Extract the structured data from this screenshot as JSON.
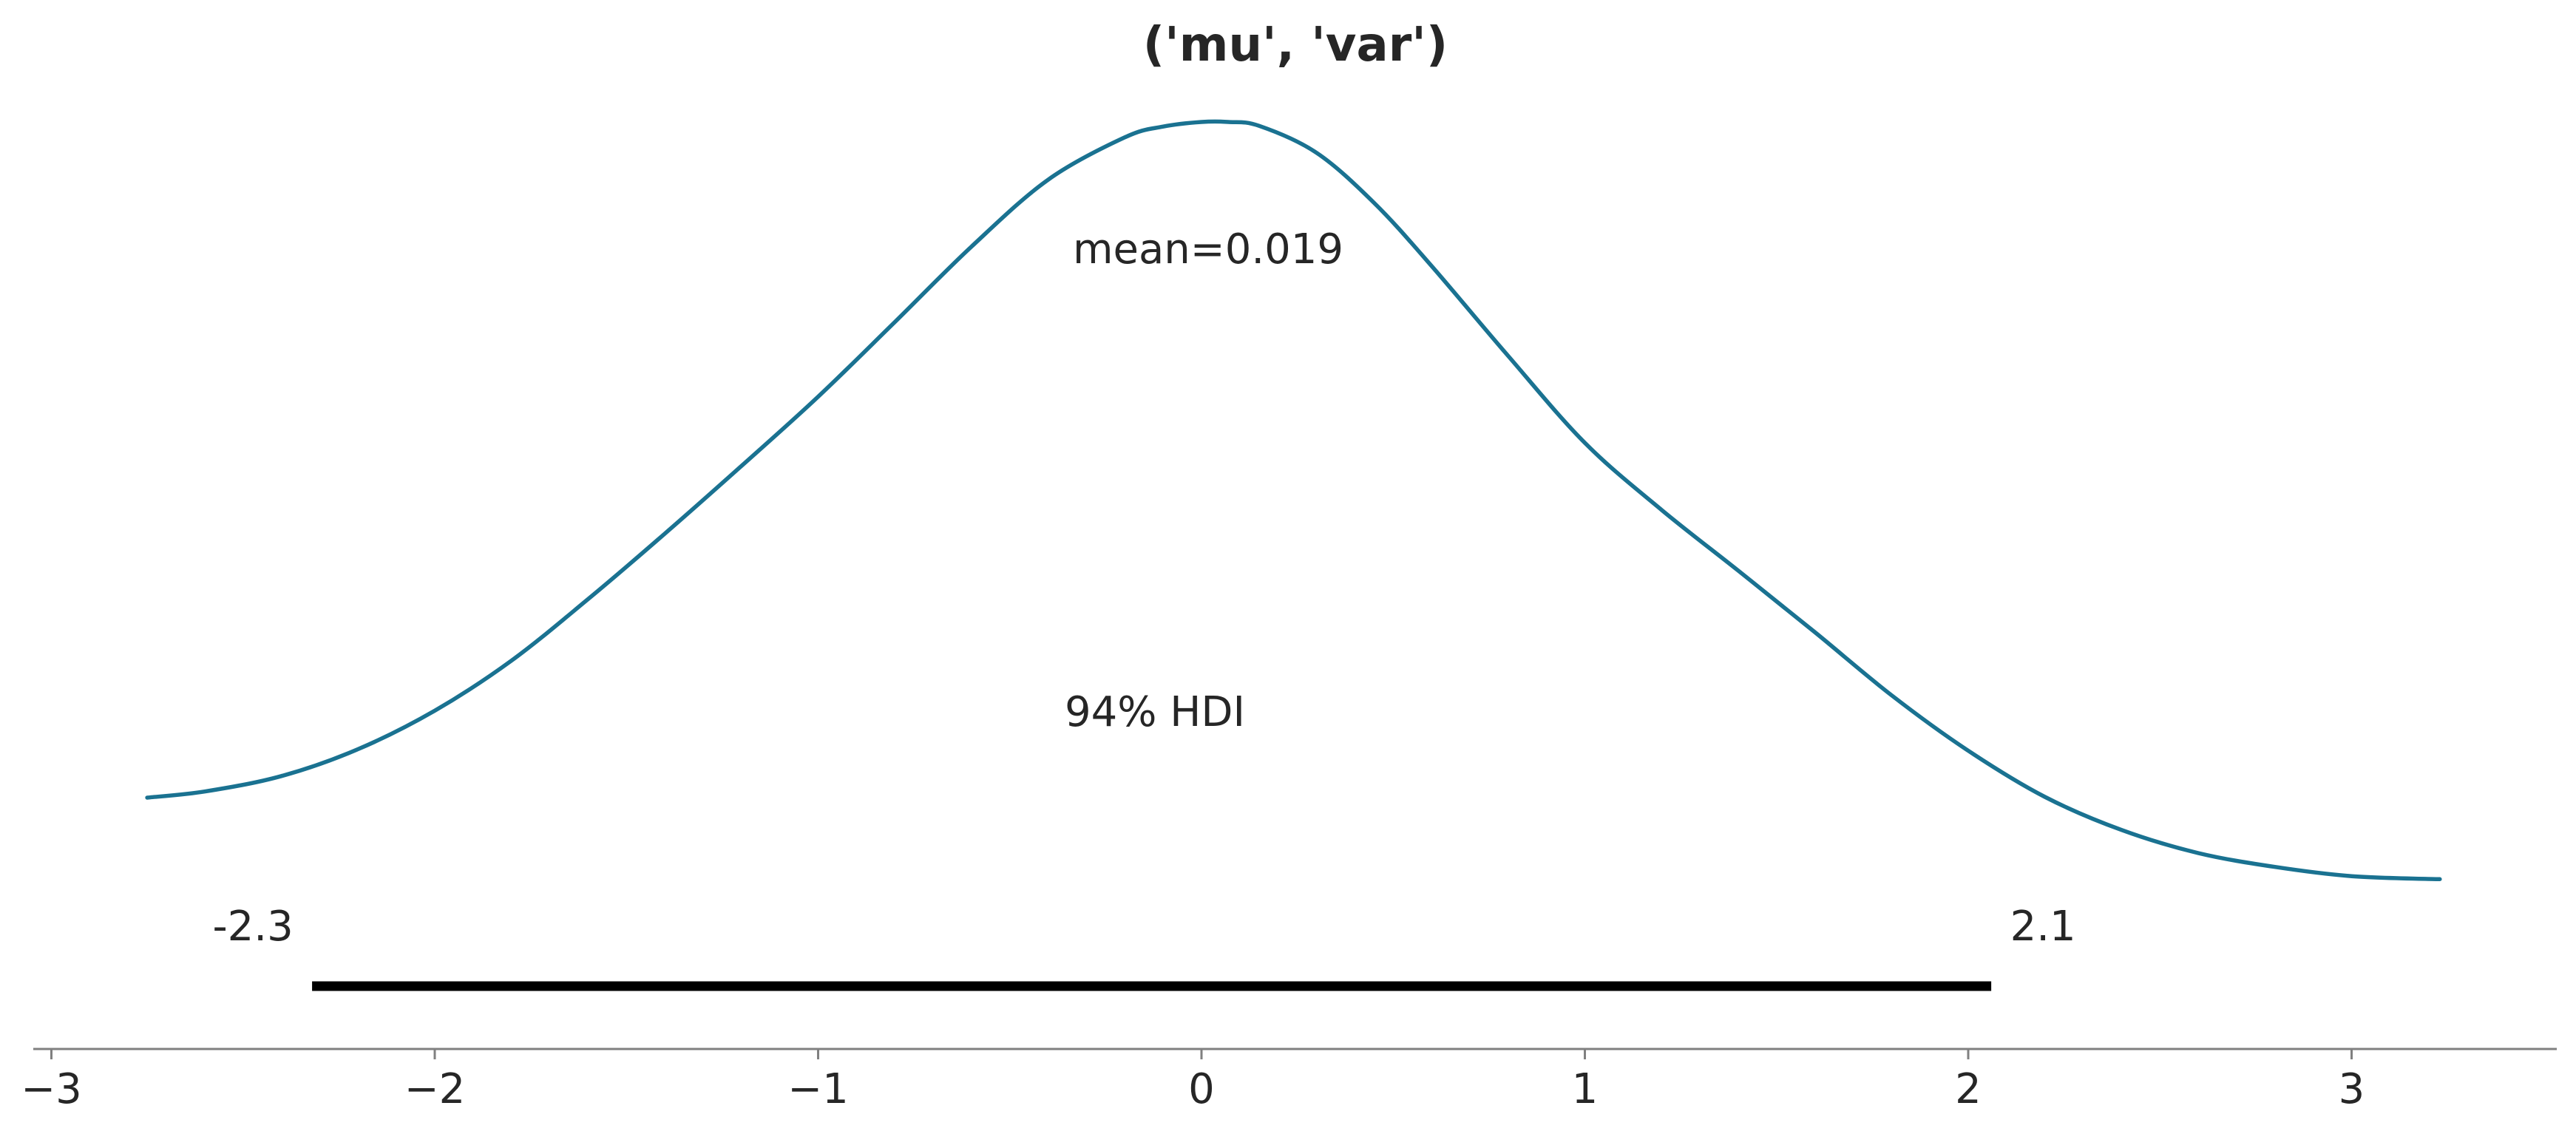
{
  "chart_data": {
    "type": "line",
    "title": "('mu', 'var')",
    "xlabel": "",
    "ylabel": "",
    "xlim": [
      -3.05,
      3.55
    ],
    "ylim": [
      0,
      1
    ],
    "grid": false,
    "x_ticks": [
      -3,
      -2,
      -1,
      0,
      1,
      2,
      3
    ],
    "x_tick_labels": [
      "−3",
      "−2",
      "−1",
      "0",
      "1",
      "2",
      "3"
    ],
    "series": [
      {
        "color": "#1a7291",
        "x": [
          -2.75,
          -2.6,
          -2.4,
          -2.2,
          -2.0,
          -1.8,
          -1.6,
          -1.4,
          -1.2,
          -1.0,
          -0.8,
          -0.6,
          -0.4,
          -0.2,
          -0.1,
          0.0,
          0.07,
          0.15,
          0.3,
          0.45,
          0.6,
          0.8,
          1.0,
          1.2,
          1.4,
          1.6,
          1.8,
          2.0,
          2.2,
          2.4,
          2.6,
          2.8,
          3.0,
          3.23
        ],
        "y": [
          0.122,
          0.13,
          0.15,
          0.185,
          0.235,
          0.3,
          0.38,
          0.465,
          0.553,
          0.643,
          0.74,
          0.838,
          0.925,
          0.98,
          0.994,
          1.0,
          1.0,
          0.995,
          0.96,
          0.895,
          0.813,
          0.696,
          0.583,
          0.496,
          0.417,
          0.337,
          0.255,
          0.183,
          0.123,
          0.08,
          0.05,
          0.032,
          0.02,
          0.016
        ]
      }
    ],
    "mean_label": "mean=0.019",
    "hdi": {
      "label": "94% HDI",
      "lower": -2.32,
      "upper": 2.06,
      "lower_label": "-2.3",
      "upper_label": "2.1"
    }
  }
}
